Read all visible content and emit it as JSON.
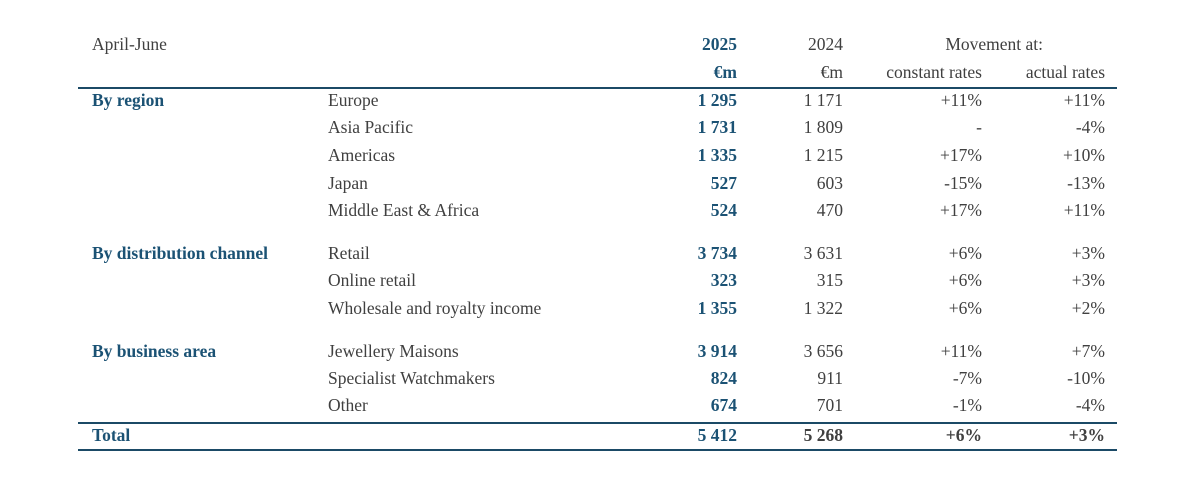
{
  "header": {
    "period": "April-June",
    "year_current": "2025",
    "year_prior": "2024",
    "movement": "Movement at:",
    "unit_current": "€m",
    "unit_prior": "€m",
    "constant": "constant rates",
    "actual": "actual rates"
  },
  "sections": [
    {
      "title": "By region",
      "rows": [
        {
          "label": "Europe",
          "v2025": "1 295",
          "v2024": "1 171",
          "constant": "+11%",
          "actual": "+11%"
        },
        {
          "label": "Asia Pacific",
          "v2025": "1 731",
          "v2024": "1 809",
          "constant": "-",
          "actual": "-4%"
        },
        {
          "label": "Americas",
          "v2025": "1 335",
          "v2024": "1 215",
          "constant": "+17%",
          "actual": "+10%"
        },
        {
          "label": "Japan",
          "v2025": "527",
          "v2024": "603",
          "constant": "-15%",
          "actual": "-13%"
        },
        {
          "label": "Middle East & Africa",
          "v2025": "524",
          "v2024": "470",
          "constant": "+17%",
          "actual": "+11%"
        }
      ]
    },
    {
      "title": "By distribution channel",
      "rows": [
        {
          "label": "Retail",
          "v2025": "3 734",
          "v2024": "3 631",
          "constant": "+6%",
          "actual": "+3%"
        },
        {
          "label": "Online retail",
          "v2025": "323",
          "v2024": "315",
          "constant": "+6%",
          "actual": "+3%"
        },
        {
          "label": "Wholesale and royalty income",
          "v2025": "1 355",
          "v2024": "1 322",
          "constant": "+6%",
          "actual": "+2%"
        }
      ]
    },
    {
      "title": "By business area",
      "rows": [
        {
          "label": "Jewellery Maisons",
          "v2025": "3 914",
          "v2024": "3 656",
          "constant": "+11%",
          "actual": "+7%"
        },
        {
          "label": "Specialist Watchmakers",
          "v2025": "824",
          "v2024": "911",
          "constant": "-7%",
          "actual": "-10%"
        },
        {
          "label": "Other",
          "v2025": "674",
          "v2024": "701",
          "constant": "-1%",
          "actual": "-4%"
        }
      ]
    }
  ],
  "total": {
    "label": "Total",
    "v2025": "5 412",
    "v2024": "5 268",
    "constant": "+6%",
    "actual": "+3%"
  }
}
